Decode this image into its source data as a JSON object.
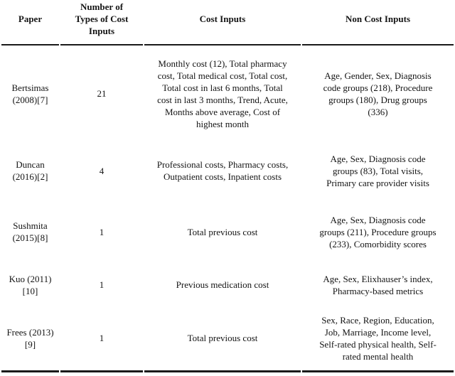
{
  "page": {
    "background_color": "#ffffff",
    "text_color": "#141414",
    "rule_color": "#1a1a1a"
  },
  "table": {
    "columns": [
      "Paper",
      "Number of Types of Cost Inputs",
      "Cost Inputs",
      "Non Cost Inputs"
    ],
    "rows": [
      {
        "paper": "Bertsimas (2008)[7]",
        "num_types": "21",
        "cost_inputs": "Monthly cost (12), Total pharmacy cost, Total medical cost, Total cost, Total cost in last 6 months, Total cost in last 3 months, Trend, Acute, Months above average, Cost of highest month",
        "non_cost_inputs": "Age, Gender, Sex, Diagnosis code groups (218), Procedure groups (180), Drug groups (336)"
      },
      {
        "paper": "Duncan (2016)[2]",
        "num_types": "4",
        "cost_inputs": "Professional costs, Pharmacy costs, Outpatient costs, Inpatient costs",
        "non_cost_inputs": "Age, Sex, Diagnosis code groups (83), Total visits, Primary care provider visits"
      },
      {
        "paper": "Sushmita (2015)[8]",
        "num_types": "1",
        "cost_inputs": "Total previous cost",
        "non_cost_inputs": "Age, Sex, Diagnosis code groups (211), Procedure groups (233), Comorbidity scores"
      },
      {
        "paper": "Kuo (2011)[10]",
        "num_types": "1",
        "cost_inputs": "Previous medication cost",
        "non_cost_inputs": "Age, Sex, Elixhauser’s index, Pharmacy-based metrics"
      },
      {
        "paper": "Frees (2013)[9]",
        "num_types": "1",
        "cost_inputs": "Total previous cost",
        "non_cost_inputs": "Sex, Race, Region, Education, Job, Marriage, Income level, Self-rated physical health, Self-rated mental health"
      }
    ]
  }
}
